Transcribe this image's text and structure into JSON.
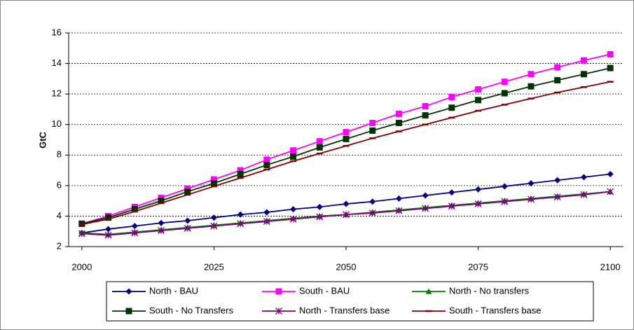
{
  "chart_data": {
    "type": "line",
    "y_label": "GtC",
    "x": [
      2000,
      2005,
      2010,
      2015,
      2020,
      2025,
      2030,
      2035,
      2040,
      2045,
      2050,
      2055,
      2060,
      2065,
      2070,
      2075,
      2080,
      2085,
      2090,
      2095,
      2100
    ],
    "xlim": [
      1997.5,
      2102.5
    ],
    "xticks": [
      2000,
      2025,
      2050,
      2075,
      2100
    ],
    "ylim": [
      2,
      16
    ],
    "yticks": [
      2,
      4,
      6,
      8,
      10,
      12,
      14,
      16
    ],
    "grid": true,
    "series": [
      {
        "name": "North - BAU",
        "color": "#000080",
        "marker": "diamond",
        "values": [
          2.9,
          3.15,
          3.35,
          3.55,
          3.7,
          3.9,
          4.1,
          4.25,
          4.45,
          4.6,
          4.8,
          4.95,
          5.15,
          5.35,
          5.55,
          5.75,
          5.95,
          6.15,
          6.35,
          6.55,
          6.75
        ]
      },
      {
        "name": "South - BAU",
        "color": "#ff00ff",
        "marker": "square",
        "values": [
          3.5,
          4.0,
          4.6,
          5.2,
          5.8,
          6.4,
          7.0,
          7.7,
          8.3,
          8.9,
          9.5,
          10.1,
          10.7,
          11.2,
          11.8,
          12.3,
          12.8,
          13.3,
          13.75,
          14.2,
          14.6
        ]
      },
      {
        "name": "North - No transfers",
        "color": "#008000",
        "marker": "triangle",
        "values": [
          2.9,
          2.8,
          2.95,
          3.1,
          3.25,
          3.4,
          3.55,
          3.7,
          3.85,
          4.0,
          4.1,
          4.25,
          4.4,
          4.55,
          4.7,
          4.85,
          5.0,
          5.15,
          5.3,
          5.45,
          5.6
        ]
      },
      {
        "name": "South - No Transfers",
        "color": "#003300",
        "marker": "square",
        "values": [
          3.5,
          3.9,
          4.45,
          5.0,
          5.6,
          6.15,
          6.75,
          7.35,
          7.9,
          8.5,
          9.05,
          9.6,
          10.1,
          10.6,
          11.1,
          11.6,
          12.05,
          12.5,
          12.9,
          13.3,
          13.7
        ]
      },
      {
        "name": "North - Transfers base",
        "color": "#800080",
        "marker": "star",
        "values": [
          2.85,
          2.75,
          2.9,
          3.05,
          3.2,
          3.35,
          3.5,
          3.65,
          3.8,
          3.95,
          4.1,
          4.2,
          4.35,
          4.5,
          4.65,
          4.8,
          4.95,
          5.1,
          5.25,
          5.4,
          5.6
        ]
      },
      {
        "name": "South - Transfers base",
        "color": "#800000",
        "marker": "dash",
        "values": [
          3.45,
          3.8,
          4.3,
          4.85,
          5.4,
          5.95,
          6.5,
          7.05,
          7.6,
          8.1,
          8.6,
          9.1,
          9.55,
          10.0,
          10.45,
          10.9,
          11.3,
          11.7,
          12.1,
          12.45,
          12.8
        ]
      }
    ],
    "legend": "bottom"
  }
}
